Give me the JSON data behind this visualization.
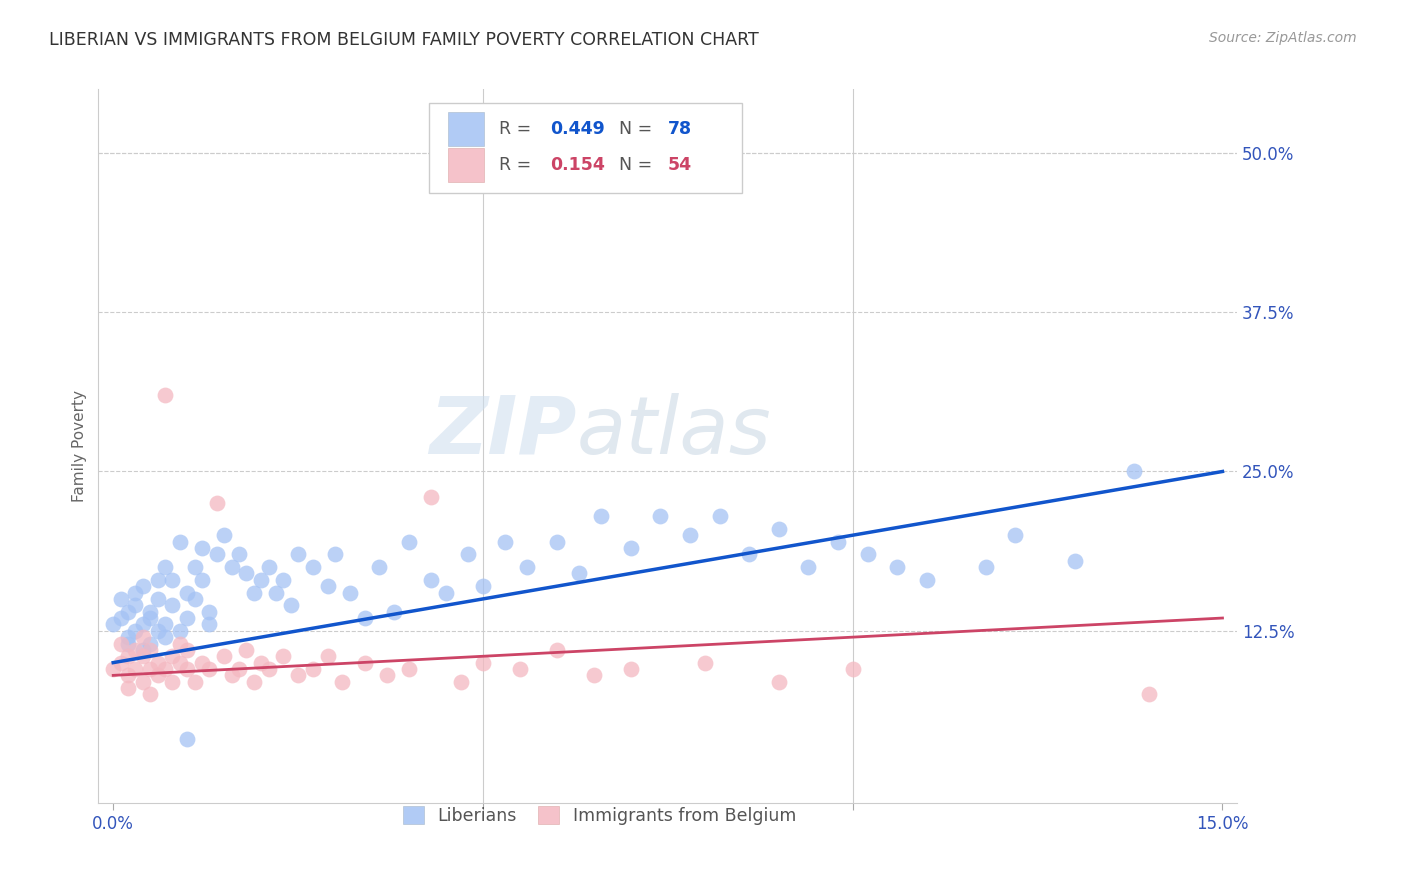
{
  "title": "LIBERIAN VS IMMIGRANTS FROM BELGIUM FAMILY POVERTY CORRELATION CHART",
  "source": "Source: ZipAtlas.com",
  "ylabel": "Family Poverty",
  "xlim": [
    -0.002,
    0.152
  ],
  "ylim": [
    -0.01,
    0.55
  ],
  "xticks": [
    0.0,
    0.05,
    0.1,
    0.15
  ],
  "xtick_labels": [
    "0.0%",
    "",
    "",
    "15.0%"
  ],
  "yticks": [
    0.125,
    0.25,
    0.375,
    0.5
  ],
  "ytick_labels": [
    "12.5%",
    "25.0%",
    "37.5%",
    "50.0%"
  ],
  "liberian_color": "#a4c2f4",
  "belgium_color": "#f4b8c1",
  "liberian_line_color": "#1155cc",
  "belgium_line_color": "#cc4466",
  "watermark": "ZIPatlas",
  "lib_line_x0": 0.0,
  "lib_line_y0": 0.1,
  "lib_line_x1": 0.15,
  "lib_line_y1": 0.25,
  "bel_line_x0": 0.0,
  "bel_line_y0": 0.09,
  "bel_line_x1": 0.15,
  "bel_line_y1": 0.135
}
